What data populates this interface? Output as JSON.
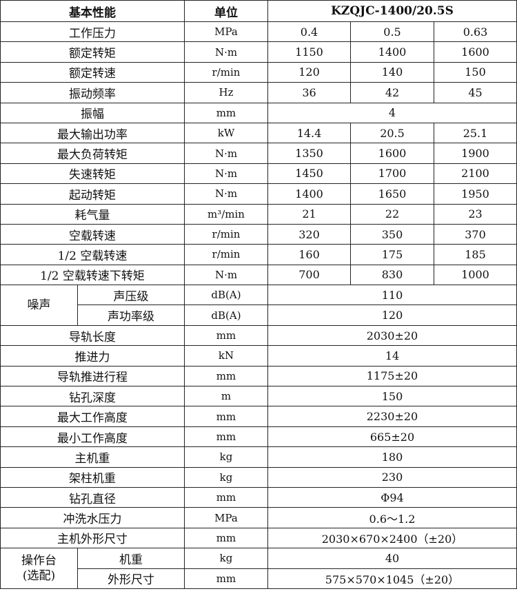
{
  "header": {
    "param": "基本性能",
    "unit": "单位",
    "model": "KZQJC-1400/20.5S"
  },
  "rows": [
    {
      "label": "工作压力",
      "unit": "MPa",
      "values": [
        "0.4",
        "0.5",
        "0.63"
      ]
    },
    {
      "label": "额定转矩",
      "unit": "N·m",
      "values": [
        "1150",
        "1400",
        "1600"
      ]
    },
    {
      "label": "额定转速",
      "unit": "r/min",
      "values": [
        "120",
        "140",
        "150"
      ]
    },
    {
      "label": "振动频率",
      "unit": "Hz",
      "values": [
        "36",
        "42",
        "45"
      ]
    },
    {
      "label": "振幅",
      "unit": "mm",
      "values": [
        "4"
      ]
    },
    {
      "label": "最大输出功率",
      "unit": "kW",
      "values": [
        "14.4",
        "20.5",
        "25.1"
      ]
    },
    {
      "label": "最大负荷转矩",
      "unit": "N·m",
      "values": [
        "1350",
        "1600",
        "1900"
      ]
    },
    {
      "label": "失速转矩",
      "unit": "N·m",
      "values": [
        "1450",
        "1700",
        "2100"
      ]
    },
    {
      "label": "起动转矩",
      "unit": "N·m",
      "values": [
        "1400",
        "1650",
        "1950"
      ]
    },
    {
      "label": "耗气量",
      "unit": "m³/min",
      "values": [
        "21",
        "22",
        "23"
      ]
    },
    {
      "label": "空载转速",
      "unit": "r/min",
      "values": [
        "320",
        "350",
        "370"
      ]
    },
    {
      "label": "1/2 空载转速",
      "unit": "r/min",
      "values": [
        "160",
        "175",
        "185"
      ]
    },
    {
      "label": "1/2 空载转速下转矩",
      "unit": "N·m",
      "values": [
        "700",
        "830",
        "1000"
      ]
    },
    {
      "group": "噪声",
      "label": "声压级",
      "unit": "dB(A)",
      "values": [
        "110"
      ]
    },
    {
      "groupCont": true,
      "label": "声功率级",
      "unit": "dB(A)",
      "values": [
        "120"
      ]
    },
    {
      "label": "导轨长度",
      "unit": "mm",
      "values": [
        "2030±20"
      ]
    },
    {
      "label": "推进力",
      "unit": "kN",
      "values": [
        "14"
      ]
    },
    {
      "label": "导轨推进行程",
      "unit": "mm",
      "values": [
        "1175±20"
      ]
    },
    {
      "label": "钻孔深度",
      "unit": "m",
      "values": [
        "150"
      ]
    },
    {
      "label": "最大工作高度",
      "unit": "mm",
      "values": [
        "2230±20"
      ]
    },
    {
      "label": "最小工作高度",
      "unit": "mm",
      "values": [
        "665±20"
      ]
    },
    {
      "label": "主机重",
      "unit": "kg",
      "values": [
        "180"
      ]
    },
    {
      "label": "架柱机重",
      "unit": "kg",
      "values": [
        "230"
      ]
    },
    {
      "label": "钻孔直径",
      "unit": "mm",
      "values": [
        "Φ94"
      ]
    },
    {
      "label": "冲洗水压力",
      "unit": "MPa",
      "values": [
        "0.6～1.2"
      ]
    },
    {
      "label": "主机外形尺寸",
      "unit": "mm",
      "values": [
        "2030×670×2400（±20）"
      ]
    },
    {
      "group": "操作台\n(选配)",
      "label": "机重",
      "unit": "kg",
      "values": [
        "40"
      ]
    },
    {
      "groupCont": true,
      "label": "外形尺寸",
      "unit": "mm",
      "values": [
        "575×570×1045（±20）"
      ]
    }
  ]
}
